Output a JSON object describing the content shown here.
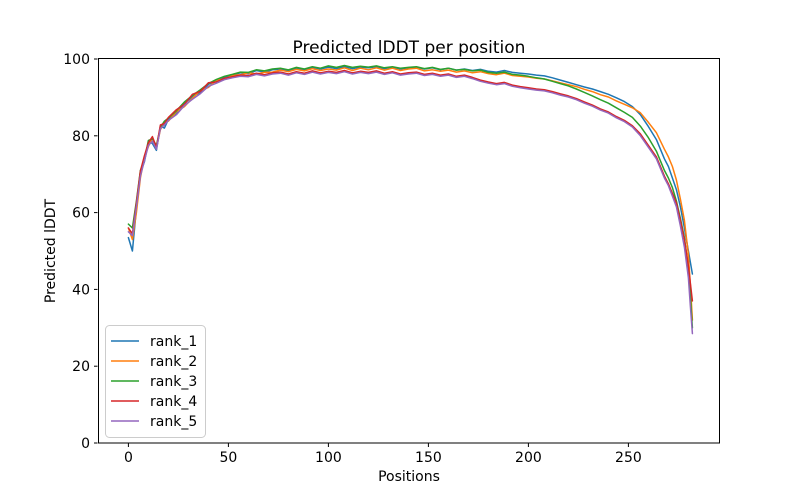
{
  "chart_data": {
    "type": "line",
    "title": "Predicted lDDT per position",
    "xlabel": "Positions",
    "ylabel": "Predicted lDDT",
    "xlim": [
      -15.2,
      295.8
    ],
    "ylim": [
      0,
      100
    ],
    "xticks": [
      0,
      50,
      100,
      150,
      200,
      250
    ],
    "yticks": [
      0,
      20,
      40,
      60,
      80,
      100
    ],
    "grid": false,
    "legend": {
      "position": "lower left",
      "entries": [
        "rank_1",
        "rank_2",
        "rank_3",
        "rank_4",
        "rank_5"
      ]
    },
    "x": [
      0,
      2,
      4,
      6,
      8,
      10,
      12,
      14,
      16,
      18,
      20,
      24,
      28,
      32,
      36,
      40,
      44,
      48,
      52,
      56,
      60,
      64,
      68,
      72,
      76,
      80,
      84,
      88,
      92,
      96,
      100,
      104,
      108,
      112,
      116,
      120,
      124,
      128,
      132,
      136,
      140,
      144,
      148,
      152,
      156,
      160,
      164,
      168,
      172,
      176,
      180,
      184,
      188,
      192,
      196,
      200,
      204,
      208,
      212,
      216,
      220,
      224,
      228,
      232,
      236,
      240,
      244,
      248,
      252,
      256,
      260,
      264,
      268,
      270,
      272,
      274,
      276,
      278,
      280,
      281,
      282
    ],
    "series": [
      {
        "name": "rank_1",
        "color": "#1f77b4",
        "values": [
          53.5,
          50,
          61,
          70.5,
          73.2,
          78.5,
          78,
          76.2,
          82.5,
          82,
          84.3,
          85.8,
          88.4,
          90.2,
          91.3,
          93.4,
          94.2,
          95.3,
          95.8,
          96.4,
          96.2,
          97,
          96.6,
          97.2,
          97.4,
          97,
          97.6,
          97.2,
          97.8,
          97.4,
          97.9,
          97.5,
          98,
          97.5,
          97.9,
          97.7,
          98,
          97.5,
          97.9,
          97.4,
          97.7,
          97.9,
          97.4,
          97.7,
          97.2,
          97.6,
          97.1,
          97.4,
          97,
          97.3,
          96.8,
          96.6,
          97,
          96.5,
          96.3,
          96.1,
          95.8,
          95.6,
          95.1,
          94.5,
          93.9,
          93.3,
          92.7,
          92.2,
          91.5,
          90.8,
          89.9,
          88.9,
          87.6,
          85.5,
          82.4,
          79,
          74,
          72,
          69,
          66,
          61.5,
          56,
          50,
          47,
          44
        ]
      },
      {
        "name": "rank_2",
        "color": "#ff7f0e",
        "values": [
          56,
          53,
          60,
          69,
          74.5,
          77.2,
          79.5,
          76.8,
          81.6,
          83.5,
          83.8,
          86.3,
          87.6,
          89.8,
          91.8,
          92.6,
          94.5,
          94.8,
          95.7,
          95.9,
          96.4,
          96.1,
          96.5,
          96.6,
          97.1,
          96.7,
          97.3,
          96.9,
          97.5,
          97,
          97.4,
          97.1,
          97.7,
          97,
          97.6,
          97.2,
          97.7,
          97.1,
          97.6,
          97,
          97.4,
          97.6,
          96.9,
          97.2,
          96.8,
          97.1,
          96.6,
          96.9,
          96.4,
          96.7,
          96.2,
          95.9,
          96.3,
          95.7,
          95.5,
          95.3,
          95,
          94.8,
          94.3,
          93.8,
          93.3,
          92.8,
          92.1,
          91.5,
          90.7,
          90.1,
          89.1,
          88.2,
          87.3,
          86,
          83.5,
          80.8,
          76.5,
          74.5,
          72,
          68.5,
          63.5,
          58,
          49,
          41,
          32
        ]
      },
      {
        "name": "rank_3",
        "color": "#2ca02c",
        "values": [
          57,
          56,
          63,
          71,
          73.8,
          78.8,
          79.2,
          77.5,
          82.2,
          83.8,
          84.6,
          86.5,
          88.8,
          90.5,
          92,
          93.6,
          94.7,
          95.5,
          96,
          96.6,
          96.5,
          97.2,
          96.9,
          97.4,
          97.6,
          97.2,
          97.8,
          97.4,
          98,
          97.6,
          98.2,
          97.8,
          98.3,
          97.8,
          98.1,
          97.9,
          98.2,
          97.7,
          98,
          97.6,
          97.8,
          98,
          97.5,
          97.8,
          97.3,
          97.6,
          97.1,
          97.3,
          96.9,
          97.1,
          96.5,
          96.3,
          96.6,
          96,
          95.8,
          95.5,
          95.1,
          94.8,
          94.2,
          93.6,
          93,
          92.2,
          91.3,
          90.4,
          89.4,
          88.5,
          87.3,
          86.1,
          84.8,
          82.5,
          79.5,
          76,
          71,
          69,
          66.5,
          63,
          58.5,
          53.5,
          45.5,
          38,
          30
        ]
      },
      {
        "name": "rank_4",
        "color": "#d62728",
        "values": [
          56,
          54.5,
          62.5,
          70.8,
          74.8,
          78.2,
          79.8,
          77,
          82.8,
          83.2,
          84.8,
          86.8,
          88.2,
          90.8,
          91.6,
          93.8,
          94,
          95,
          95.4,
          95.8,
          95.7,
          96.3,
          95.9,
          96.4,
          96.6,
          96.1,
          96.7,
          96.3,
          96.9,
          96.4,
          96.8,
          96.5,
          97,
          96.4,
          96.8,
          96.5,
          96.9,
          96.3,
          96.7,
          96.1,
          96.4,
          96.6,
          96,
          96.3,
          95.8,
          96.1,
          95.5,
          95.8,
          95.2,
          94.5,
          94,
          93.6,
          93.9,
          93.2,
          92.8,
          92.5,
          92.2,
          92,
          91.5,
          90.9,
          90.4,
          89.7,
          88.8,
          88,
          87,
          86.2,
          85,
          84,
          82.6,
          80.5,
          77.5,
          74.5,
          69.5,
          67.5,
          65,
          62.5,
          58,
          53,
          46,
          41.5,
          37
        ]
      },
      {
        "name": "rank_5",
        "color": "#9467bd",
        "values": [
          55,
          54,
          61.5,
          69.5,
          73.5,
          77.5,
          78.6,
          76.5,
          81.9,
          82.8,
          84,
          85.5,
          87.9,
          89.5,
          91,
          92.9,
          93.7,
          94.6,
          95.1,
          95.5,
          95.4,
          96,
          95.6,
          96.1,
          96.3,
          95.8,
          96.4,
          96,
          96.6,
          96.1,
          96.5,
          96.2,
          96.7,
          96.1,
          96.5,
          96.2,
          96.6,
          96,
          96.4,
          95.8,
          96.1,
          96.3,
          95.7,
          96,
          95.5,
          95.8,
          95.2,
          95.5,
          94.9,
          94.2,
          93.7,
          93.3,
          93.6,
          92.9,
          92.5,
          92.2,
          91.9,
          91.7,
          91.2,
          90.6,
          90.1,
          89.4,
          88.5,
          87.7,
          86.7,
          85.9,
          84.7,
          83.7,
          82.3,
          80,
          77,
          74,
          69,
          67,
          64.3,
          61.5,
          56.5,
          51,
          43,
          35.5,
          28.5
        ]
      }
    ]
  }
}
